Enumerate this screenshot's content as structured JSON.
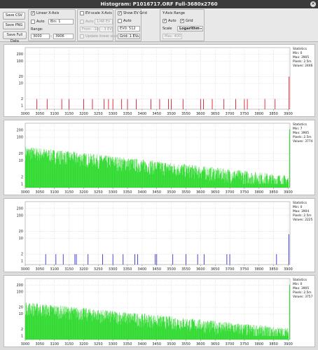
{
  "window": {
    "title": "Histogram: P1016717.ORF Full-3680x2760"
  },
  "buttons": {
    "save_csv": "Save CSV",
    "save_png": "Save PNG",
    "save_full_data": "Save Full Data"
  },
  "linear_x": {
    "title": "Linear X-Axis",
    "auto_label": "Auto",
    "bins_label": "Bin:",
    "bins_value": "1",
    "range_label": "Range:",
    "range_from": "3000",
    "range_to": "3906"
  },
  "ev_x": {
    "title": "EV-scale X-Axis",
    "auto_label": "Auto",
    "bins_label": "Bin:",
    "bins_value": "1/48 EV",
    "from_value": "From: -10",
    "to_value": "- 3 EV",
    "update_label": "Update linear scale"
  },
  "ev_grid": {
    "title": "Show EV Grid",
    "auto_label": "Auto",
    "ev0_label": "EV0:",
    "ev0_value": "512",
    "grid_value": "Grid: 1 EV"
  },
  "y_range": {
    "title": "Y-Axis Range",
    "auto_label": "Auto",
    "grid_label": "Grid",
    "scale_label": "Scale",
    "scale_value": "Logarithm",
    "max_value": "Max: 400"
  },
  "plots": [
    {
      "color": "#d8000c",
      "stats_title": "Statistics",
      "min": "Min: 0",
      "max": "Max: 3905",
      "pixels": "Pixels: 2.5m",
      "values": "Values: 2446"
    },
    {
      "color": "#11d511",
      "stats_title": "Statistics",
      "min": "Min: 7",
      "max": "Max: 3905",
      "pixels": "Pixels: 2.5m",
      "values": "Values: 3774"
    },
    {
      "color": "#1c1cc8",
      "stats_title": "Statistics",
      "min": "Min: 0",
      "max": "Max: 3904",
      "pixels": "Pixels: 2.5m",
      "values": "Values: 2225"
    },
    {
      "color": "#11d511",
      "stats_title": "Statistics",
      "min": "Min: 0",
      "max": "Max: 3905",
      "pixels": "Pixels: 2.5m",
      "values": "Values: 3757"
    }
  ],
  "chart_data": {
    "type": "bar",
    "xlim": [
      3000,
      3906
    ],
    "x_ticks": [
      "3000",
      "3050",
      "3100",
      "3150",
      "3200",
      "3250",
      "3300",
      "3350",
      "3400",
      "3450",
      "3500",
      "3550",
      "3600",
      "3650",
      "3700",
      "3750",
      "3800",
      "3850",
      "3900"
    ],
    "y_scale": "log",
    "y_ticks": [
      "1",
      "2",
      "10",
      "20",
      "100",
      "200"
    ],
    "grid": true,
    "series": [
      {
        "bars": [
          [
            3040,
            2
          ],
          [
            3075,
            2
          ],
          [
            3125,
            2
          ],
          [
            3150,
            2
          ],
          [
            3200,
            2
          ],
          [
            3230,
            2
          ],
          [
            3270,
            2
          ],
          [
            3285,
            2
          ],
          [
            3300,
            2
          ],
          [
            3330,
            2
          ],
          [
            3350,
            2
          ],
          [
            3380,
            2
          ],
          [
            3430,
            2
          ],
          [
            3460,
            2
          ],
          [
            3490,
            2
          ],
          [
            3500,
            2
          ],
          [
            3540,
            2
          ],
          [
            3600,
            2
          ],
          [
            3610,
            2
          ],
          [
            3640,
            2
          ],
          [
            3680,
            2
          ],
          [
            3720,
            2
          ],
          [
            3750,
            2
          ],
          [
            3760,
            2
          ],
          [
            3820,
            2
          ],
          [
            3855,
            2
          ],
          [
            3903,
            20
          ]
        ]
      },
      {
        "decay": {
          "start": 28,
          "end": 1.6,
          "spike": [
            3905,
            220
          ]
        }
      },
      {
        "bars": [
          [
            3070,
            2
          ],
          [
            3105,
            2
          ],
          [
            3130,
            2
          ],
          [
            3170,
            2
          ],
          [
            3175,
            2
          ],
          [
            3215,
            2
          ],
          [
            3265,
            2
          ],
          [
            3300,
            2
          ],
          [
            3335,
            2
          ],
          [
            3375,
            2
          ],
          [
            3385,
            2
          ],
          [
            3445,
            2
          ],
          [
            3450,
            2
          ],
          [
            3505,
            2
          ],
          [
            3550,
            2
          ],
          [
            3590,
            2
          ],
          [
            3612,
            2
          ],
          [
            3690,
            2
          ],
          [
            3700,
            2
          ],
          [
            3860,
            2
          ],
          [
            3902,
            15
          ]
        ]
      },
      {
        "decay": {
          "start": 24,
          "end": 1.6,
          "spike": [
            3905,
            210
          ]
        }
      }
    ]
  }
}
